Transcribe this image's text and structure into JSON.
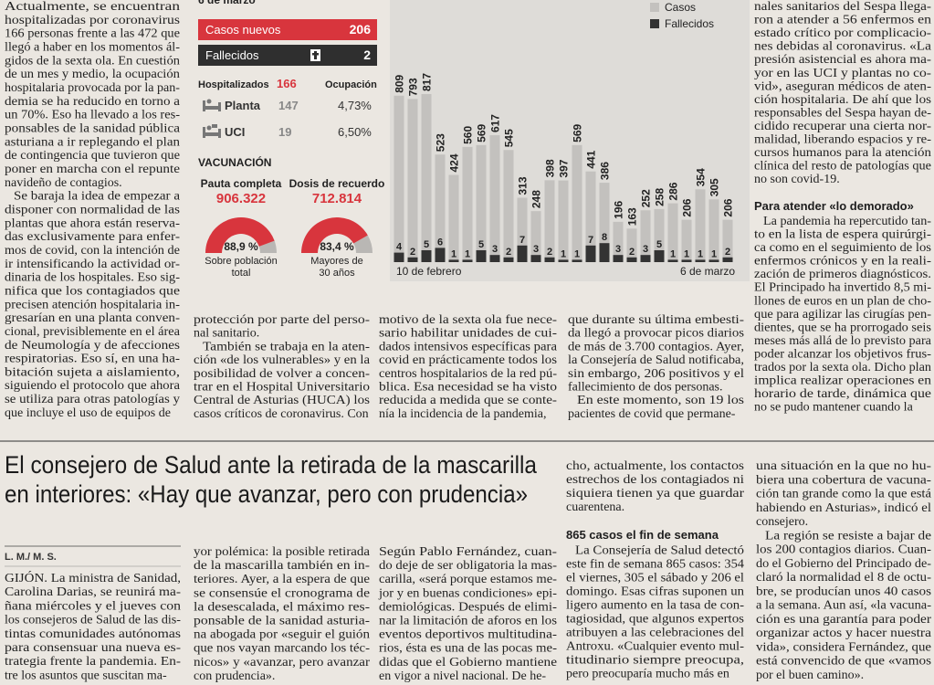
{
  "left_column": {
    "blocks": [
      {
        "lines": [
          "Actualmente, se encuentran",
          "hospitalizadas por coronavirus",
          "166 personas frente a las 472 que",
          "llegó a haber en los momentos ál-",
          "gidos de la sexta ola. En cuestión",
          "de un mes y medio, la ocupación",
          "hospitalaria provocada por la pan-",
          "demia se ha reducido en torno a",
          "un 70%. Eso ha llevado a los res-",
          "ponsables de la sanidad pública",
          "asturiana a ir replegando el plan",
          "de contingencia que tuvieron que",
          "poner en marcha con el repunte",
          "navideño de contagios."
        ]
      },
      {
        "lines": [
          "Se baraja la idea de empezar a",
          "disponer con normalidad de las",
          "plantas que ahora están reserva-",
          "das exclusivamente para enfer-",
          "mos de covid, con la intención de",
          "ir intensificando la actividad or-",
          "dinaria de los hospitales. Eso sig-",
          "nifica que los contagiados que",
          "precisen atención hospitalaria in-",
          "gresarían en una planta conven-",
          "cional, previsiblemente en el área",
          "de Neumología y de afecciones",
          "respiratorias. Eso sí, en una ha-",
          "bitación sujeta a aislamiento,",
          "siguiendo el protocolo que ahora",
          "se utiliza para otras patologías y",
          "que incluye el uso de equipos de"
        ]
      }
    ]
  },
  "infographic": {
    "date": "6 de marzo",
    "new_cases": {
      "label": "Casos nuevos",
      "value": "206"
    },
    "deaths": {
      "label": "Fallecidos",
      "value": "2"
    },
    "hospital": {
      "label": "Hospitalizados",
      "total": "166",
      "occupancy_label": "Ocupación",
      "rows": [
        {
          "label": "Planta",
          "count": "147",
          "occupancy": "4,73%"
        },
        {
          "label": "UCI",
          "count": "19",
          "occupancy": "6,50%"
        }
      ]
    },
    "vaccination": {
      "title": "VACUNACIÓN",
      "items": [
        {
          "label": "Pauta completa",
          "count": "906.322",
          "percent": 88.9,
          "percent_label": "88,9 %",
          "note": [
            "Sobre población",
            "total"
          ]
        },
        {
          "label": "Dosis de recuerdo",
          "count": "712.814",
          "percent": 83.4,
          "percent_label": "83,4 %",
          "note": [
            "Mayores de",
            "30 años"
          ]
        }
      ]
    },
    "chart": {
      "type": "bar",
      "categories": [
        "10 de febrero",
        null,
        null,
        null,
        null,
        null,
        null,
        null,
        null,
        null,
        null,
        null,
        null,
        null,
        null,
        null,
        null,
        null,
        null,
        null,
        null,
        null,
        null,
        null,
        "6 de marzo"
      ],
      "series": [
        {
          "name": "Casos",
          "color": "#c3c1be",
          "values": [
            809,
            793,
            817,
            523,
            424,
            560,
            569,
            617,
            545,
            313,
            248,
            398,
            397,
            569,
            441,
            386,
            196,
            163,
            252,
            258,
            286,
            206,
            354,
            305,
            206
          ]
        },
        {
          "name": "Fallecidos",
          "color": "#333333",
          "values": [
            4,
            2,
            5,
            6,
            1,
            1,
            5,
            3,
            2,
            7,
            3,
            2,
            1,
            1,
            7,
            8,
            3,
            2,
            3,
            5,
            1,
            1,
            1,
            1,
            2
          ]
        }
      ]
    }
  },
  "middle_columns": [
    {
      "blocks": [
        {
          "lines": [
            "protección por parte del perso-",
            "nal sanitario."
          ]
        },
        {
          "lines": [
            "También se trabaja en la aten-",
            "ción «de los vulnerables» y en la",
            "posibilidad de volver a concen-",
            "trar en el Hospital Universitario",
            "Central de Asturias (HUCA) los",
            "casos críticos de coronavirus. Con"
          ]
        }
      ]
    },
    {
      "blocks": [
        {
          "lines": [
            "motivo de la sexta ola fue nece-",
            "sario habilitar unidades de cui-",
            "dados intensivos específicas para",
            "covid en prácticamente todos los",
            "centros hospitalarios de la red pú-",
            "blica. Esa necesidad se ha visto",
            "reducida a medida que se conte-",
            "nía la incidencia de la pandemia,"
          ]
        }
      ]
    },
    {
      "blocks": [
        {
          "lines": [
            "que durante su última embesti-",
            "da llegó a provocar picos diarios",
            "de más de 3.700 contagios. Ayer,",
            "la Consejería de Salud notificaba,",
            "sin embargo, 206 positivos y el",
            "fallecimiento de dos personas."
          ]
        },
        {
          "lines": [
            "En este momento, son 19 los",
            "pacientes de covid que permane-"
          ]
        }
      ]
    }
  ],
  "right_column": {
    "blocks": [
      {
        "lines": [
          "nales sanitarios del Sespa llega-",
          "ron a atender a 56 enfermos en",
          "estado crítico por complicacio-",
          "nes debidas al coronavirus. «La",
          "presión asistencial es ahora ma-",
          "yor en las UCI y plantas no co-",
          "vid», aseguran médicos de aten-",
          "ción hospitalaria. De ahí que los",
          "responsables del Sespa hayan de-",
          "cidido recuperar una cierta nor-",
          "malidad, liberando espacios y re-",
          "cursos humanos para la atención",
          "clínica del resto de patologías que",
          "no son covid-19."
        ]
      },
      {
        "subhead": "Para atender «lo demorado»"
      },
      {
        "lines": [
          "La pandemia ha repercutido tan-",
          "to en la lista de espera quirúrgi-",
          "ca como en el seguimiento de los",
          "enfermos crónicos y en la reali-",
          "zación de primeros diagnósticos.",
          "El Principado ha invertido 8,5 mi-",
          "llones de euros en un plan de cho-",
          "que para agilizar las cirugías pen-",
          "dientes, que se ha prorrogado seis",
          "meses más allá de lo previsto para",
          "poder alcanzar los objetivos frus-",
          "trados por la sexta ola. Dicho plan",
          "implica realizar operaciones en",
          "horario de tarde, dinámica que",
          "no se pudo mantener cuando la"
        ]
      }
    ]
  },
  "article": {
    "headline": [
      "El consejero de Salud ante la retirada de la mascarilla",
      "en interiores: «Hay que avanzar, pero con prudencia»"
    ],
    "byline": "L. M./ M. S.",
    "columns": [
      {
        "blocks": [
          {
            "lines": [
              "GIJÓN. La ministra de Sanidad,",
              "Carolina Darias, se reunirá ma-",
              "ñana miércoles y el jueves con",
              "los consejeros de Salud de las dis-",
              "tintas comunidades autónomas",
              "para consensuar una nueva es-",
              "trategia frente la pandemia. En-",
              "tre los asuntos que suscitan ma-"
            ]
          }
        ]
      },
      {
        "blocks": [
          {
            "lines": [
              "yor polémica: la posible retirada",
              "de la mascarilla también en in-",
              "teriores. Ayer, a la espera de que",
              "se consensúe el cronograma de",
              "la desescalada, el máximo res-",
              "ponsable de la sanidad asturia-",
              "na abogada por «seguir el guión",
              "que nos vayan marcando los téc-",
              "nicos» y «avanzar, pero avanzar",
              "con prudencia»."
            ]
          }
        ]
      },
      {
        "blocks": [
          {
            "lines": [
              "Según Pablo Fernández, cuan-",
              "do deje de ser obligatoria la mas-",
              "carilla, «será porque estamos me-",
              "jor y en buenas condiciones» epi-",
              "demiológicas. Después de elimi-",
              "nar la limitación de aforos en los",
              "eventos deportivos multitudina-",
              "rios, ésta es una de las pocas me-",
              "didas que el Gobierno mantiene",
              "en vigor a nivel nacional. De he-"
            ]
          }
        ]
      },
      {
        "blocks": [
          {
            "lines": [
              "cho, actualmente, los contactos",
              "estrechos de los contagiados ni",
              "siquiera tienen ya que guardar",
              "cuarentena."
            ]
          },
          {
            "subhead": "865 casos el fin de semana"
          },
          {
            "lines": [
              "La Consejería de Salud detectó",
              "este fin de semana 865 casos: 354",
              "el viernes, 305 el sábado y 206 el",
              "domingo. Esas cifras suponen un",
              "ligero aumento en la tasa de con-",
              "tagiosidad, que algunos expertos",
              "atribuyen a las celebraciones del",
              "Antroxu. «Cualquier evento mul-",
              "titudinario siempre preocupa,",
              "pero preocuparía mucho más en"
            ]
          }
        ]
      },
      {
        "blocks": [
          {
            "lines": [
              "una situación en la que no hu-",
              "biera una cobertura de vacuna-",
              "ción tan grande como la que está",
              "habiendo en Asturias», indicó el",
              "consejero."
            ]
          },
          {
            "lines": [
              "La región se resiste a bajar de",
              "los 200 contagios diarios. Cuan-",
              "do el Gobierno del Principado de-",
              "claró la normalidad el 8 de octu-",
              "bre, se producían unos 40 casos",
              "a la semana. Aun así, «la vacuna-",
              "ción es una garantía para poder",
              "organizar actos y hacer nuestra",
              "vida», considera Fernández, que",
              "está convencido de que «vamos",
              "por el buen camino»."
            ]
          }
        ]
      }
    ]
  }
}
